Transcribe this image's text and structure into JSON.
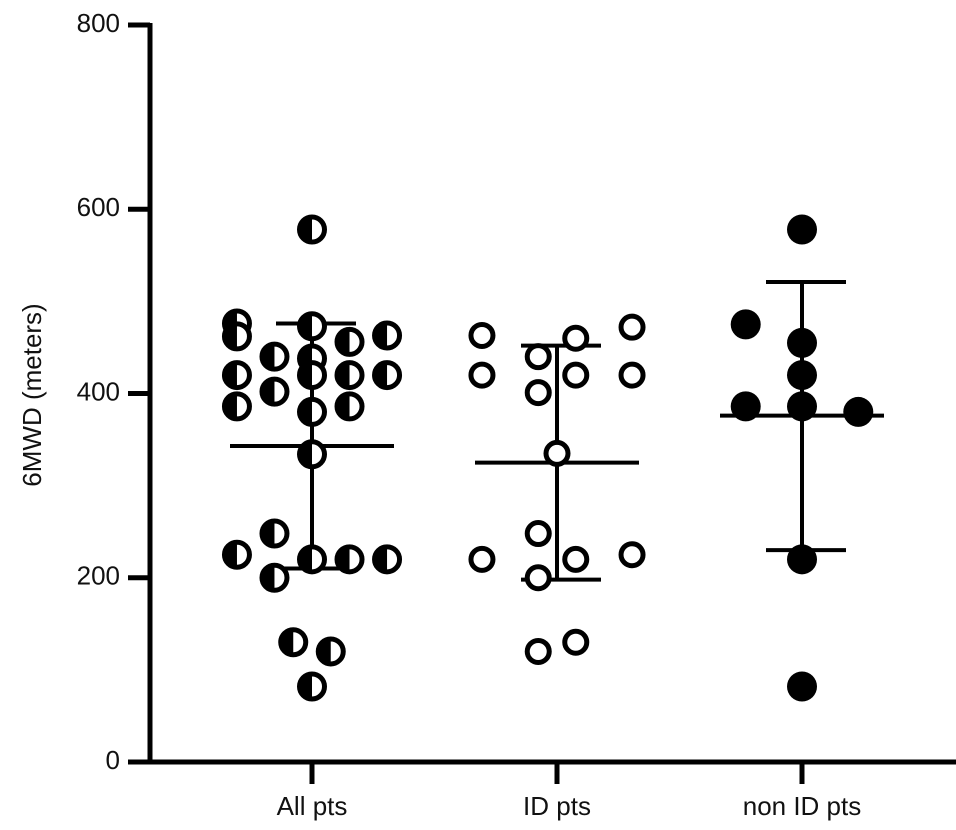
{
  "chart_data": {
    "type": "scatter",
    "title": "",
    "xlabel": "",
    "ylabel": "6MWD (meters)",
    "ylim": [
      0,
      800
    ],
    "yticks": [
      "0",
      "200",
      "400",
      "600",
      "800"
    ],
    "categories": [
      "All pts",
      "ID pts",
      "non ID pts"
    ],
    "grid": false,
    "legend": "none",
    "colors": {
      "axis": "#000000",
      "marker": "#000000",
      "fill_open": "#ffffff"
    },
    "series": [
      {
        "category": "All pts",
        "marker": "half-filled",
        "points": [
          {
            "offset": 0.0,
            "y": 578
          },
          {
            "offset": -0.28,
            "y": 476
          },
          {
            "offset": 0.0,
            "y": 473
          },
          {
            "offset": -0.28,
            "y": 462
          },
          {
            "offset": 0.28,
            "y": 463
          },
          {
            "offset": 0.14,
            "y": 456
          },
          {
            "offset": -0.14,
            "y": 440
          },
          {
            "offset": 0.0,
            "y": 438
          },
          {
            "offset": -0.28,
            "y": 420
          },
          {
            "offset": 0.0,
            "y": 420
          },
          {
            "offset": 0.14,
            "y": 420
          },
          {
            "offset": 0.28,
            "y": 420
          },
          {
            "offset": -0.14,
            "y": 402
          },
          {
            "offset": -0.28,
            "y": 386
          },
          {
            "offset": 0.14,
            "y": 386
          },
          {
            "offset": 0.0,
            "y": 380
          },
          {
            "offset": 0.0,
            "y": 334
          },
          {
            "offset": -0.14,
            "y": 248
          },
          {
            "offset": -0.28,
            "y": 225
          },
          {
            "offset": 0.0,
            "y": 220
          },
          {
            "offset": 0.14,
            "y": 220
          },
          {
            "offset": 0.28,
            "y": 220
          },
          {
            "offset": -0.14,
            "y": 200
          },
          {
            "offset": -0.07,
            "y": 130
          },
          {
            "offset": 0.07,
            "y": 120
          },
          {
            "offset": 0.0,
            "y": 82
          }
        ],
        "mean": 343,
        "sd_low": 210,
        "sd_high": 476
      },
      {
        "category": "ID pts",
        "marker": "open",
        "points": [
          {
            "offset": -0.28,
            "y": 463
          },
          {
            "offset": 0.28,
            "y": 472
          },
          {
            "offset": 0.07,
            "y": 460
          },
          {
            "offset": -0.07,
            "y": 440
          },
          {
            "offset": -0.28,
            "y": 420
          },
          {
            "offset": 0.07,
            "y": 420
          },
          {
            "offset": 0.28,
            "y": 420
          },
          {
            "offset": -0.07,
            "y": 401
          },
          {
            "offset": 0.0,
            "y": 335
          },
          {
            "offset": -0.07,
            "y": 248
          },
          {
            "offset": -0.28,
            "y": 220
          },
          {
            "offset": 0.07,
            "y": 220
          },
          {
            "offset": 0.28,
            "y": 225
          },
          {
            "offset": -0.07,
            "y": 200
          },
          {
            "offset": 0.07,
            "y": 130
          },
          {
            "offset": -0.07,
            "y": 120
          }
        ],
        "mean": 325,
        "sd_low": 198,
        "sd_high": 452
      },
      {
        "category": "non ID pts",
        "marker": "filled",
        "points": [
          {
            "offset": 0.0,
            "y": 578
          },
          {
            "offset": -0.21,
            "y": 475
          },
          {
            "offset": 0.0,
            "y": 455
          },
          {
            "offset": 0.0,
            "y": 420
          },
          {
            "offset": -0.21,
            "y": 386
          },
          {
            "offset": 0.0,
            "y": 386
          },
          {
            "offset": 0.21,
            "y": 380
          },
          {
            "offset": 0.0,
            "y": 220
          },
          {
            "offset": 0.0,
            "y": 82
          }
        ],
        "mean": 376,
        "sd_low": 230,
        "sd_high": 521
      }
    ]
  }
}
